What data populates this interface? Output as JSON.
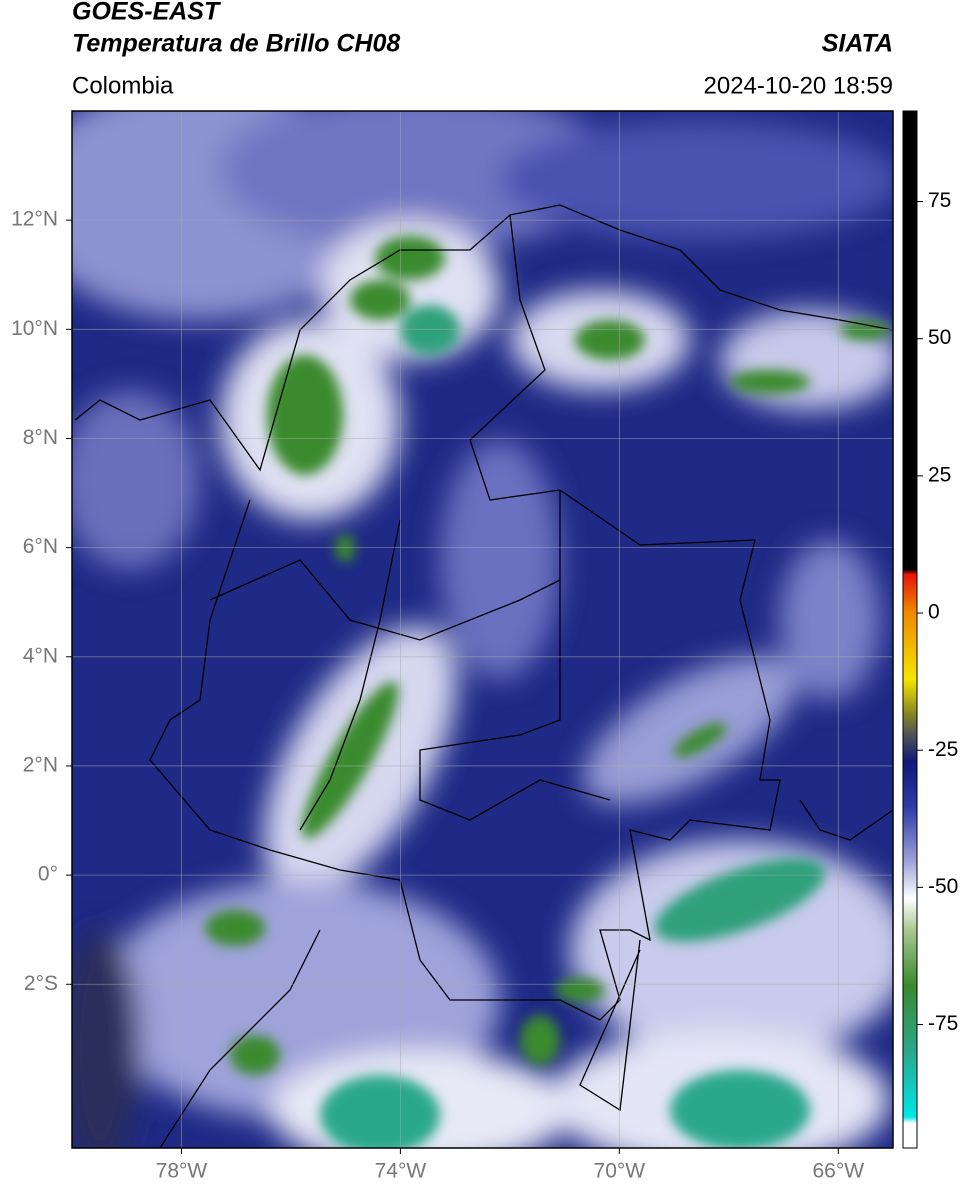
{
  "header": {
    "title_line1": "GOES-EAST",
    "title_line2": "Temperatura de Brillo CH08",
    "source": "SIATA",
    "region": "Colombia",
    "timestamp": "2024-10-20 18:59"
  },
  "map": {
    "xlim": [
      -80,
      -65
    ],
    "ylim": [
      -5,
      14
    ],
    "xticks": [
      {
        "value": -78,
        "label": "78°W"
      },
      {
        "value": -74,
        "label": "74°W"
      },
      {
        "value": -70,
        "label": "70°W"
      },
      {
        "value": -66,
        "label": "66°W"
      }
    ],
    "yticks": [
      {
        "value": 12,
        "label": "12°N"
      },
      {
        "value": 10,
        "label": "10°N"
      },
      {
        "value": 8,
        "label": "8°N"
      },
      {
        "value": 6,
        "label": "6°N"
      },
      {
        "value": 4,
        "label": "4°N"
      },
      {
        "value": 2,
        "label": "2°N"
      },
      {
        "value": 0,
        "label": "0°"
      },
      {
        "value": -2,
        "label": "2°S"
      }
    ],
    "grid": true
  },
  "colorbar": {
    "lim": [
      -97.5,
      91.5
    ],
    "ticks": [
      75,
      50,
      25,
      0,
      -25,
      -50,
      -75
    ]
  }
}
